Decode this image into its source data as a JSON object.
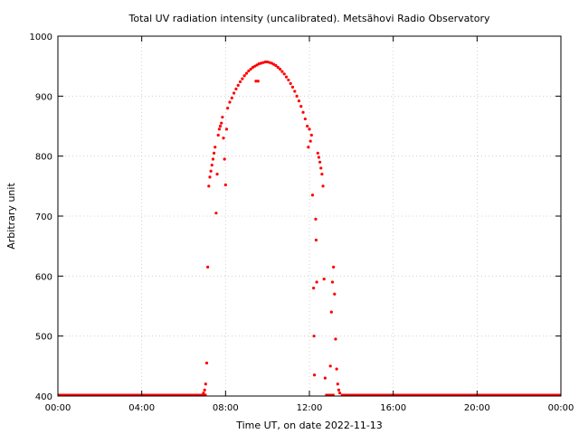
{
  "chart_data": {
    "type": "scatter",
    "title": "Total UV radiation intensity (uncalibrated). Metsähovi Radio Observatory",
    "xlabel": "Time UT, on date 2022-11-13",
    "ylabel": "Arbitrary unit",
    "xlim": [
      0,
      24
    ],
    "ylim": [
      400,
      1000
    ],
    "x_ticks": [
      {
        "value": 0,
        "label": "00:00"
      },
      {
        "value": 4,
        "label": "04:00"
      },
      {
        "value": 8,
        "label": "08:00"
      },
      {
        "value": 12,
        "label": "12:00"
      },
      {
        "value": 16,
        "label": "16:00"
      },
      {
        "value": 20,
        "label": "20:00"
      },
      {
        "value": 24,
        "label": "00:00"
      }
    ],
    "y_ticks": [
      {
        "value": 400,
        "label": "400"
      },
      {
        "value": 500,
        "label": "500"
      },
      {
        "value": 600,
        "label": "600"
      },
      {
        "value": 700,
        "label": "700"
      },
      {
        "value": 800,
        "label": "800"
      },
      {
        "value": 900,
        "label": "900"
      },
      {
        "value": 1000,
        "label": "1000"
      }
    ],
    "grid": true,
    "color": "#ff0000",
    "series": [
      {
        "baseline_value": 400,
        "baseline_ranges": [
          [
            0.0,
            7.1
          ],
          [
            12.75,
            13.2
          ],
          [
            13.5,
            24.0
          ]
        ],
        "points": [
          [
            6.95,
            405
          ],
          [
            7.0,
            410
          ],
          [
            7.05,
            420
          ],
          [
            7.1,
            455
          ],
          [
            7.15,
            615
          ],
          [
            7.2,
            750
          ],
          [
            7.25,
            765
          ],
          [
            7.3,
            775
          ],
          [
            7.35,
            785
          ],
          [
            7.4,
            795
          ],
          [
            7.45,
            805
          ],
          [
            7.5,
            815
          ],
          [
            7.55,
            705
          ],
          [
            7.6,
            770
          ],
          [
            7.65,
            835
          ],
          [
            7.7,
            845
          ],
          [
            7.75,
            850
          ],
          [
            7.8,
            855
          ],
          [
            7.85,
            865
          ],
          [
            7.9,
            830
          ],
          [
            7.95,
            795
          ],
          [
            8.0,
            752
          ],
          [
            8.05,
            845
          ],
          [
            8.1,
            880
          ],
          [
            8.2,
            890
          ],
          [
            8.3,
            897
          ],
          [
            8.4,
            905
          ],
          [
            8.5,
            912
          ],
          [
            8.6,
            918
          ],
          [
            8.7,
            924
          ],
          [
            8.8,
            929
          ],
          [
            8.9,
            934
          ],
          [
            9.0,
            938
          ],
          [
            9.1,
            942
          ],
          [
            9.2,
            945
          ],
          [
            9.3,
            948
          ],
          [
            9.4,
            950
          ],
          [
            9.45,
            925
          ],
          [
            9.5,
            952
          ],
          [
            9.55,
            925
          ],
          [
            9.6,
            954
          ],
          [
            9.7,
            955
          ],
          [
            9.8,
            956
          ],
          [
            9.9,
            957
          ],
          [
            10.0,
            957
          ],
          [
            10.1,
            956
          ],
          [
            10.2,
            955
          ],
          [
            10.3,
            953
          ],
          [
            10.4,
            951
          ],
          [
            10.5,
            948
          ],
          [
            10.6,
            945
          ],
          [
            10.7,
            941
          ],
          [
            10.8,
            937
          ],
          [
            10.9,
            932
          ],
          [
            11.0,
            927
          ],
          [
            11.1,
            921
          ],
          [
            11.2,
            915
          ],
          [
            11.3,
            908
          ],
          [
            11.4,
            900
          ],
          [
            11.5,
            892
          ],
          [
            11.6,
            883
          ],
          [
            11.7,
            873
          ],
          [
            11.8,
            862
          ],
          [
            11.9,
            850
          ],
          [
            11.95,
            815
          ],
          [
            12.0,
            845
          ],
          [
            12.05,
            825
          ],
          [
            12.1,
            835
          ],
          [
            12.15,
            735
          ],
          [
            12.2,
            580
          ],
          [
            12.22,
            500
          ],
          [
            12.24,
            435
          ],
          [
            12.3,
            695
          ],
          [
            12.32,
            660
          ],
          [
            12.35,
            590
          ],
          [
            12.4,
            805
          ],
          [
            12.45,
            798
          ],
          [
            12.5,
            790
          ],
          [
            12.55,
            780
          ],
          [
            12.6,
            770
          ],
          [
            12.65,
            750
          ],
          [
            12.7,
            595
          ],
          [
            12.75,
            430
          ],
          [
            13.0,
            450
          ],
          [
            13.05,
            540
          ],
          [
            13.1,
            590
          ],
          [
            13.15,
            615
          ],
          [
            13.2,
            570
          ],
          [
            13.25,
            495
          ],
          [
            13.3,
            445
          ],
          [
            13.35,
            420
          ],
          [
            13.4,
            410
          ],
          [
            13.45,
            405
          ]
        ]
      }
    ]
  }
}
